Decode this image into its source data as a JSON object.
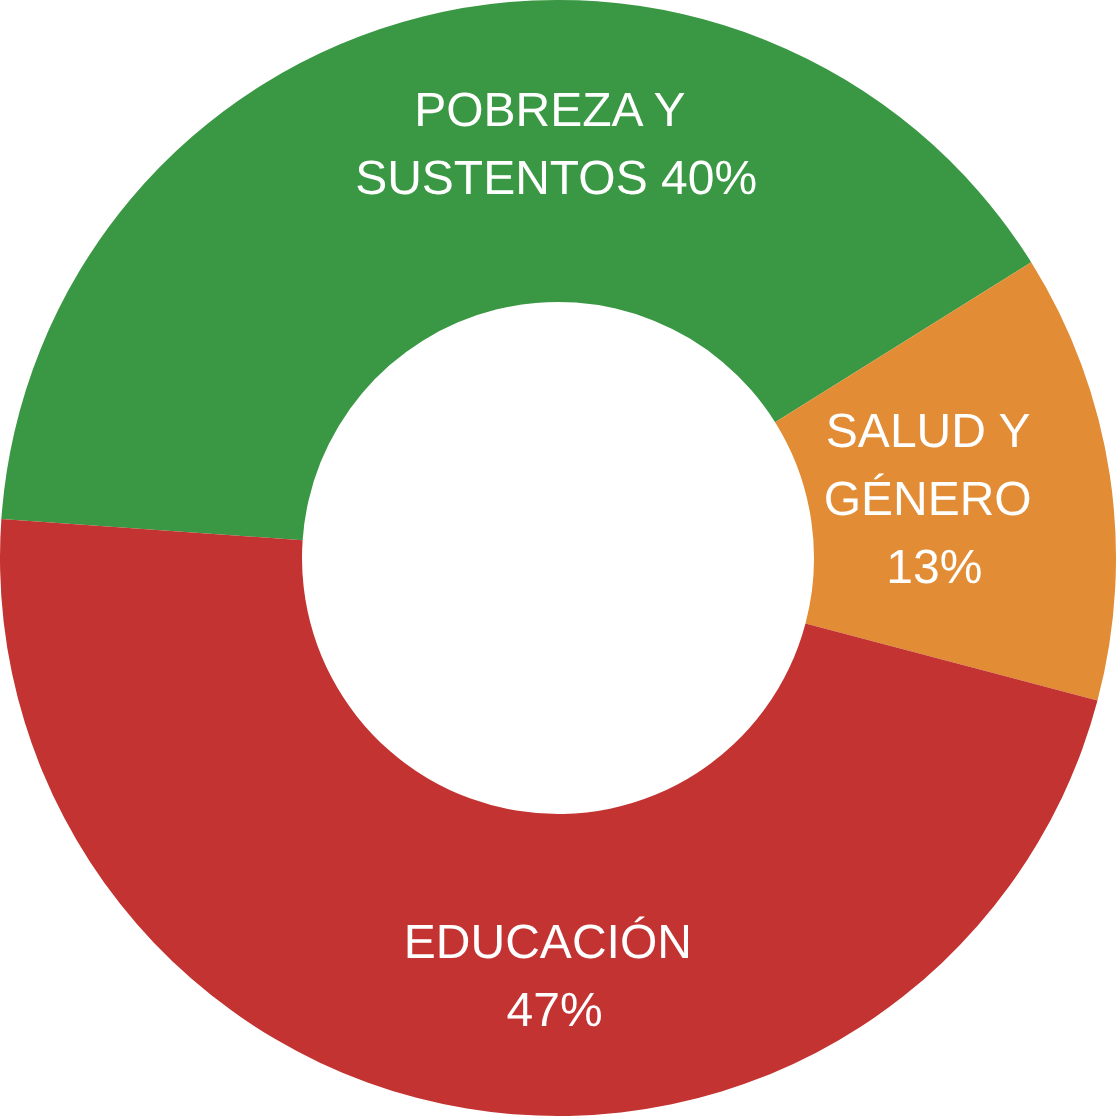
{
  "chart_data": {
    "type": "donut",
    "categories": [
      "POBREZA Y SUSTENTOS",
      "SALUD Y GÉNERO",
      "EDUCACIÓN"
    ],
    "values": [
      40,
      13,
      47
    ],
    "value_labels": [
      "40%",
      "13%",
      "47%"
    ],
    "colors": [
      "#3a9844",
      "#e28c35",
      "#c33331"
    ]
  }
}
